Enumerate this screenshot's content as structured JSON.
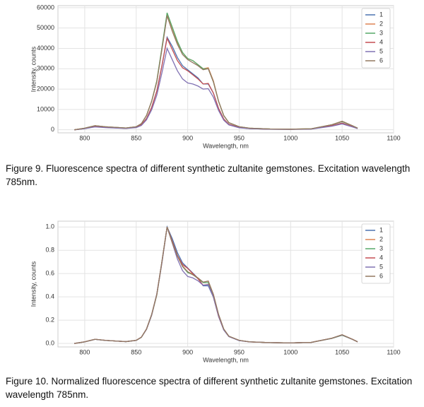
{
  "chart_data": [
    {
      "type": "line",
      "xlabel": "Wavelength, nm",
      "ylabel": "Intensity, counts",
      "x": [
        790,
        800,
        810,
        820,
        830,
        840,
        850,
        855,
        860,
        865,
        870,
        875,
        880,
        885,
        890,
        895,
        900,
        905,
        910,
        915,
        920,
        925,
        930,
        935,
        940,
        950,
        960,
        980,
        1000,
        1020,
        1040,
        1050,
        1060,
        1065
      ],
      "xlim": [
        774,
        1100
      ],
      "xticks": [
        800,
        850,
        900,
        950,
        1000,
        1050,
        1100
      ],
      "ylim": [
        -1500,
        61000
      ],
      "yticks": [
        0,
        10000,
        20000,
        30000,
        40000,
        50000,
        60000
      ],
      "grid": true,
      "legend": "upper right",
      "series": [
        {
          "name": "1",
          "color": "#4c72b0",
          "values": [
            0,
            600,
            1600,
            1200,
            950,
            700,
            1200,
            2400,
            5500,
            11000,
            19000,
            31500,
            45500,
            41000,
            35500,
            31500,
            29500,
            27500,
            25500,
            22500,
            22500,
            18000,
            10500,
            5300,
            2700,
            1150,
            600,
            300,
            230,
            400,
            2000,
            3300,
            1600,
            650
          ]
        },
        {
          "name": "2",
          "color": "#dd8452",
          "values": [
            0,
            800,
            2000,
            1500,
            1200,
            900,
            1500,
            3000,
            7000,
            14000,
            24000,
            40000,
            57000,
            50000,
            43000,
            38000,
            35000,
            34000,
            32000,
            30000,
            30500,
            24000,
            14000,
            7000,
            3500,
            1500,
            800,
            400,
            300,
            500,
            2500,
            4200,
            2000,
            800
          ]
        },
        {
          "name": "3",
          "color": "#55a868",
          "values": [
            0,
            800,
            2000,
            1500,
            1200,
            900,
            1500,
            3000,
            7000,
            14000,
            24000,
            40500,
            57500,
            50500,
            43500,
            38000,
            35000,
            34000,
            32000,
            30000,
            30000,
            23500,
            14000,
            7000,
            3500,
            1500,
            800,
            400,
            300,
            500,
            2500,
            4000,
            2000,
            800
          ]
        },
        {
          "name": "4",
          "color": "#c44e52",
          "values": [
            0,
            650,
            1600,
            1200,
            950,
            700,
            1200,
            2400,
            5500,
            11000,
            19000,
            31500,
            45000,
            39500,
            34000,
            30500,
            29000,
            27000,
            25000,
            22500,
            22800,
            18000,
            10500,
            5300,
            2700,
            1150,
            600,
            300,
            230,
            400,
            2000,
            3300,
            1600,
            650
          ]
        },
        {
          "name": "5",
          "color": "#8172b3",
          "values": [
            0,
            550,
            1400,
            1050,
            850,
            650,
            1050,
            2100,
            4900,
            9800,
            17000,
            28000,
            40000,
            34500,
            29000,
            25000,
            23000,
            22500,
            21500,
            20000,
            20200,
            16000,
            9500,
            4700,
            2400,
            1000,
            550,
            280,
            200,
            350,
            1750,
            2900,
            1400,
            560
          ]
        },
        {
          "name": "6",
          "color": "#937860",
          "values": [
            0,
            800,
            2000,
            1500,
            1200,
            900,
            1500,
            3000,
            7000,
            14000,
            23500,
            39500,
            56000,
            48500,
            42000,
            37000,
            34500,
            33000,
            31500,
            29500,
            30000,
            23500,
            14000,
            7000,
            3500,
            1500,
            800,
            400,
            300,
            500,
            2500,
            4200,
            2000,
            800
          ]
        }
      ]
    },
    {
      "type": "line",
      "xlabel": "Wavelength, nm",
      "ylabel": "Intensity, counts",
      "x": [
        790,
        800,
        810,
        820,
        830,
        840,
        850,
        855,
        860,
        865,
        870,
        875,
        880,
        885,
        890,
        895,
        900,
        905,
        910,
        915,
        920,
        925,
        930,
        935,
        940,
        950,
        960,
        980,
        1000,
        1020,
        1040,
        1050,
        1060,
        1065
      ],
      "xlim": [
        774,
        1100
      ],
      "xticks": [
        800,
        850,
        900,
        950,
        1000,
        1050,
        1100
      ],
      "ylim": [
        -0.03,
        1.05
      ],
      "yticks": [
        {
          "value": 0,
          "label": "0.0"
        },
        0.2,
        0.4,
        0.6,
        0.8,
        {
          "value": 1,
          "label": "1.0"
        }
      ],
      "grid": true,
      "legend": "upper right",
      "series": [
        {
          "name": "1",
          "color": "#4c72b0",
          "values": [
            0,
            0.013,
            0.035,
            0.026,
            0.021,
            0.015,
            0.026,
            0.053,
            0.121,
            0.242,
            0.418,
            0.692,
            1,
            0.901,
            0.78,
            0.692,
            0.648,
            0.604,
            0.56,
            0.495,
            0.495,
            0.396,
            0.231,
            0.116,
            0.059,
            0.025,
            0.013,
            0.007,
            0.005,
            0.009,
            0.044,
            0.073,
            0.035,
            0.014
          ]
        },
        {
          "name": "2",
          "color": "#dd8452",
          "values": [
            0,
            0.014,
            0.035,
            0.026,
            0.021,
            0.016,
            0.026,
            0.053,
            0.123,
            0.246,
            0.42,
            0.7,
            1,
            0.877,
            0.754,
            0.667,
            0.614,
            0.596,
            0.561,
            0.526,
            0.535,
            0.42,
            0.246,
            0.123,
            0.061,
            0.026,
            0.014,
            0.007,
            0.005,
            0.009,
            0.044,
            0.074,
            0.035,
            0.014
          ]
        },
        {
          "name": "3",
          "color": "#55a868",
          "values": [
            0,
            0.014,
            0.035,
            0.026,
            0.021,
            0.016,
            0.026,
            0.052,
            0.122,
            0.243,
            0.417,
            0.704,
            1,
            0.878,
            0.757,
            0.661,
            0.609,
            0.591,
            0.557,
            0.522,
            0.522,
            0.409,
            0.243,
            0.122,
            0.061,
            0.026,
            0.014,
            0.007,
            0.005,
            0.009,
            0.043,
            0.07,
            0.035,
            0.014
          ]
        },
        {
          "name": "4",
          "color": "#c44e52",
          "values": [
            0,
            0.014,
            0.036,
            0.027,
            0.021,
            0.016,
            0.027,
            0.053,
            0.122,
            0.244,
            0.422,
            0.7,
            1,
            0.878,
            0.756,
            0.678,
            0.644,
            0.6,
            0.556,
            0.5,
            0.507,
            0.4,
            0.233,
            0.118,
            0.06,
            0.026,
            0.013,
            0.007,
            0.005,
            0.009,
            0.044,
            0.073,
            0.036,
            0.014
          ]
        },
        {
          "name": "5",
          "color": "#8172b3",
          "values": [
            0,
            0.014,
            0.035,
            0.026,
            0.021,
            0.016,
            0.026,
            0.053,
            0.123,
            0.245,
            0.425,
            0.7,
            1,
            0.863,
            0.725,
            0.625,
            0.575,
            0.563,
            0.538,
            0.5,
            0.505,
            0.4,
            0.238,
            0.118,
            0.06,
            0.025,
            0.014,
            0.007,
            0.005,
            0.009,
            0.044,
            0.073,
            0.035,
            0.014
          ]
        },
        {
          "name": "6",
          "color": "#937860",
          "values": [
            0,
            0.014,
            0.036,
            0.027,
            0.021,
            0.016,
            0.027,
            0.054,
            0.125,
            0.25,
            0.42,
            0.705,
            1,
            0.866,
            0.75,
            0.661,
            0.616,
            0.589,
            0.563,
            0.527,
            0.536,
            0.42,
            0.25,
            0.125,
            0.063,
            0.027,
            0.014,
            0.007,
            0.005,
            0.009,
            0.045,
            0.075,
            0.036,
            0.014
          ]
        }
      ]
    }
  ],
  "captions": [
    "Figure 9. Fluorescence spectra of different synthetic zultanite gemstones. Excitation wavelength 785nm.",
    "Figure 10. Normalized fluorescence spectra of different synthetic zultanite gemstones. Excitation wavelength 785nm."
  ]
}
